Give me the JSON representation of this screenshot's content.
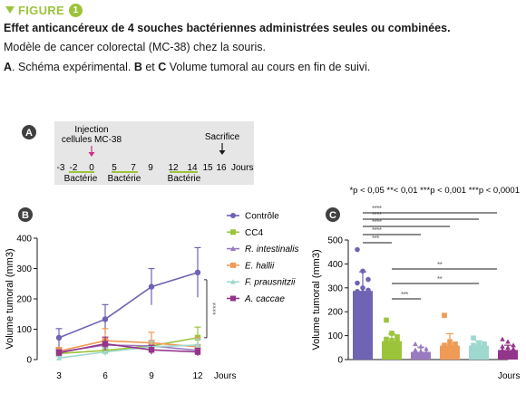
{
  "figure": {
    "label": "FIGURE",
    "number": "1",
    "title": "Effet anticancéreux de 4 souches bactériennes administrées seules ou combinées.",
    "subtitle": "Modèle de cancer colorectal (MC-38) chez la souris.",
    "desc_a": "A",
    "desc_a_text": ". Schéma expérimental. ",
    "desc_b": "B",
    "desc_et": " et ",
    "desc_c": "C",
    "desc_rest": " Volume tumoral au cours en fin de suivi."
  },
  "panel_a": {
    "letter": "A",
    "injection_label": [
      "Injection",
      "cellules MC-38"
    ],
    "sacrifice_label": "Sacrifice",
    "days": [
      "-3",
      "-2",
      "0",
      "5",
      "7",
      "9",
      "12",
      "14",
      "15",
      "16"
    ],
    "unit": "Jours",
    "bacteria_label": "Bactérie",
    "colors": {
      "box": "#e6e6e6",
      "injection_arrow": "#cc2f8a",
      "bacteria_line": "#9cc43a"
    }
  },
  "significance_note": "*p < 0,05 **< 0,01 ***p < 0,001 ***p < 0,0001",
  "chart_data": [
    {
      "panel": "B",
      "type": "line",
      "xlabel": "Jours",
      "ylabel": "Volume tumoral (mm3)",
      "x": [
        3,
        6,
        9,
        12
      ],
      "xticks": [
        "3",
        "6",
        "9",
        "12"
      ],
      "yticks": [
        "0",
        "100",
        "200",
        "300",
        "400"
      ],
      "ylim": [
        0,
        400
      ],
      "series": [
        {
          "name": "Contrôle",
          "color": "#6f63b3",
          "marker": "circle",
          "values": [
            72,
            133,
            240,
            287
          ],
          "err": [
            30,
            48,
            60,
            82
          ]
        },
        {
          "name": "CC4",
          "color": "#9cc43a",
          "marker": "square",
          "values": [
            20,
            30,
            45,
            72
          ],
          "err": [
            10,
            12,
            12,
            35
          ]
        },
        {
          "name": "R. intestinalis",
          "color": "#9a7bbf",
          "marker": "triangle",
          "values": [
            25,
            48,
            45,
            30
          ],
          "err": [
            12,
            18,
            18,
            18
          ]
        },
        {
          "name": "E. hallii",
          "color": "#ef9a55",
          "marker": "square",
          "values": [
            28,
            62,
            55,
            42
          ],
          "err": [
            12,
            40,
            35,
            30
          ]
        },
        {
          "name": "F. prausnitzii",
          "color": "#9ed8cf",
          "marker": "triangle",
          "values": [
            5,
            25,
            42,
            48
          ],
          "err": [
            5,
            12,
            18,
            20
          ]
        },
        {
          "name": "A. caccae",
          "color": "#93358a",
          "marker": "square",
          "values": [
            22,
            52,
            32,
            25
          ],
          "err": [
            10,
            22,
            15,
            12
          ]
        }
      ],
      "annotation": "****"
    },
    {
      "panel": "C",
      "type": "bar",
      "ylabel": "Volume tumoral (mm3)",
      "xlabel": "Jours",
      "categories": [
        "Contrôle",
        "CC4",
        "R. intestinalis",
        "E. hallii",
        "F. prausnitzii",
        "A. caccae"
      ],
      "values": [
        287,
        77,
        32,
        58,
        58,
        40
      ],
      "errors": [
        80,
        30,
        20,
        50,
        20,
        20
      ],
      "colors": [
        "#6f63b3",
        "#9cc43a",
        "#9a7bbf",
        "#ef9a55",
        "#9ed8cf",
        "#93358a"
      ],
      "yticks": [
        "0",
        "100",
        "200",
        "300",
        "400",
        "500"
      ],
      "ylim": [
        0,
        500
      ],
      "points": [
        [
          460,
          370,
          335,
          320,
          300,
          290,
          285,
          280,
          275
        ],
        [
          165,
          110,
          95,
          85,
          80,
          75,
          70,
          65,
          60
        ],
        [
          65,
          55,
          45,
          40,
          35,
          30,
          28,
          25,
          20
        ],
        [
          185,
          75,
          65,
          60,
          55,
          50,
          45,
          40,
          35
        ],
        [
          90,
          70,
          65,
          60,
          55,
          50,
          45,
          40,
          35
        ],
        [
          85,
          75,
          60,
          55,
          50,
          45,
          40,
          35,
          30
        ]
      ],
      "brackets": [
        {
          "from": 0,
          "to": 1,
          "label": "***"
        },
        {
          "from": 0,
          "to": 2,
          "label": "****"
        },
        {
          "from": 0,
          "to": 3,
          "label": "****"
        },
        {
          "from": 0,
          "to": 4,
          "label": "****"
        },
        {
          "from": 0,
          "to": 5,
          "label": "****"
        },
        {
          "from": 1,
          "to": 2,
          "label": "***"
        },
        {
          "from": 1,
          "to": 4,
          "label": "**"
        },
        {
          "from": 1,
          "to": 5,
          "label": "**"
        }
      ]
    }
  ]
}
